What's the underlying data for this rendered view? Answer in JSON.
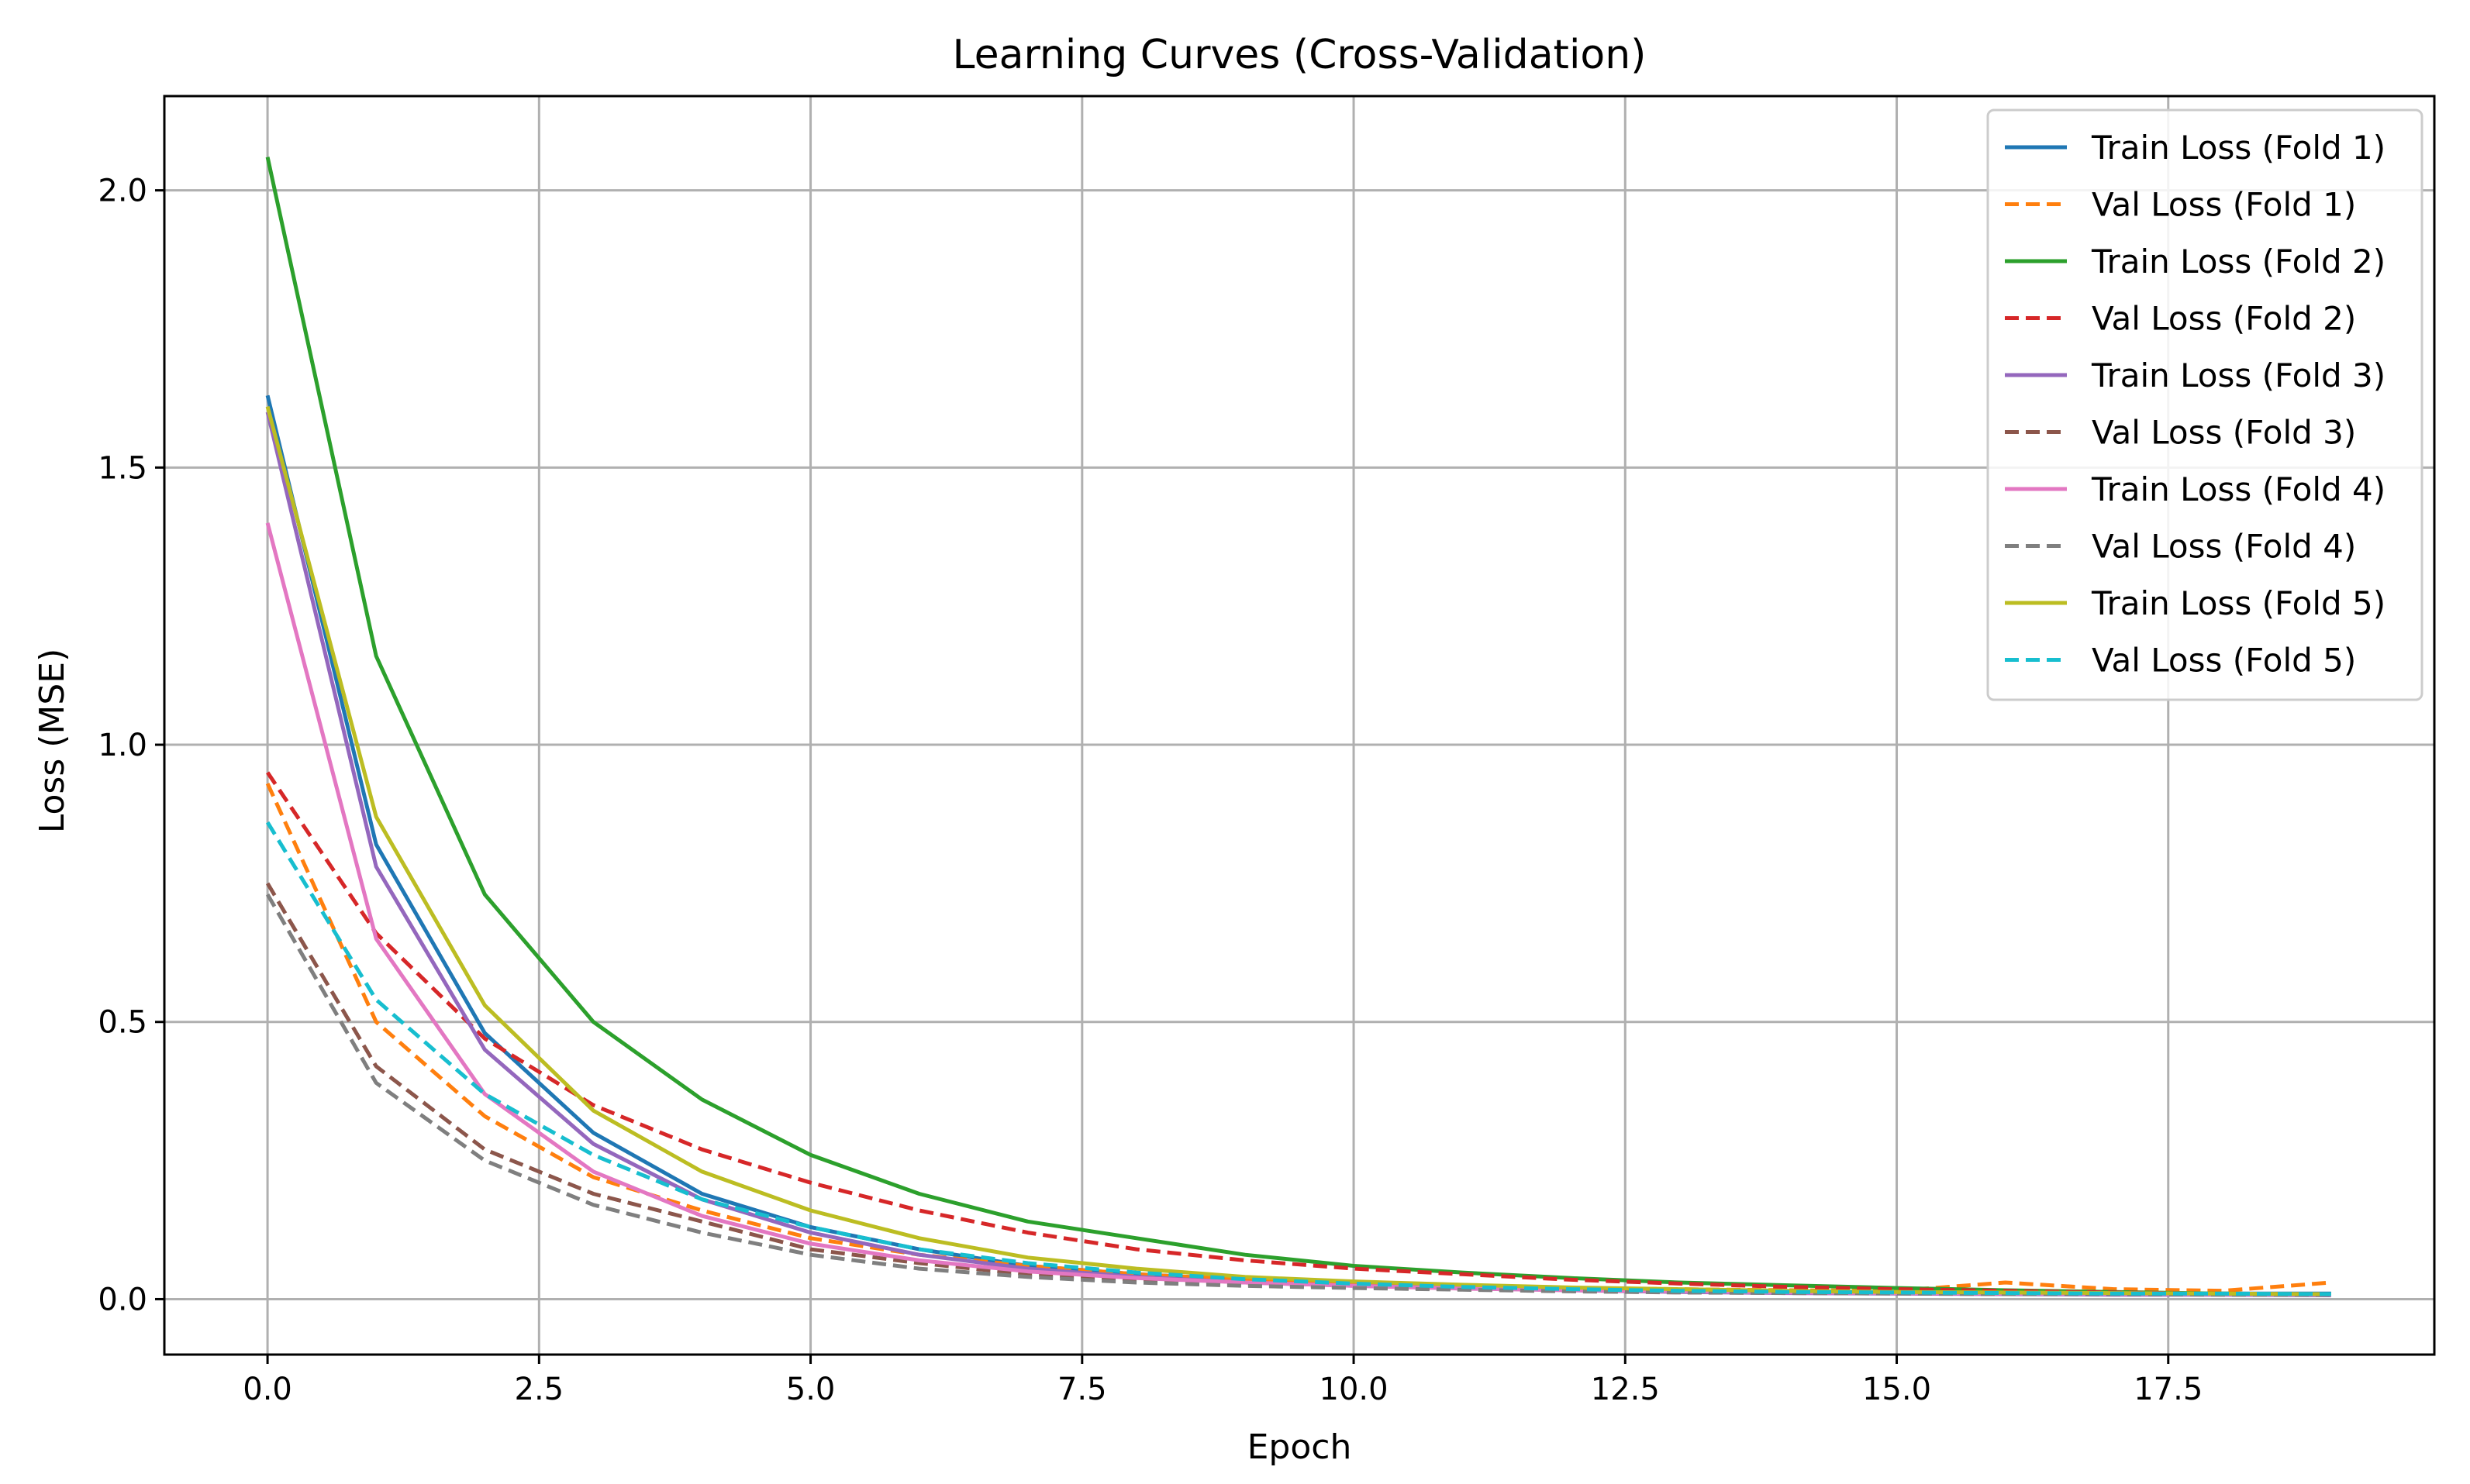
{
  "chart_data": {
    "type": "line",
    "title": "Learning Curves (Cross-Validation)",
    "xlabel": "Epoch",
    "ylabel": "Loss (MSE)",
    "xlim": [
      -0.95,
      19.95
    ],
    "ylim": [
      -0.1,
      2.17
    ],
    "xticks": [
      0.0,
      2.5,
      5.0,
      7.5,
      10.0,
      12.5,
      15.0,
      17.5
    ],
    "xtick_labels": [
      "0.0",
      "2.5",
      "5.0",
      "7.5",
      "10.0",
      "12.5",
      "15.0",
      "17.5"
    ],
    "yticks": [
      0.0,
      0.5,
      1.0,
      1.5,
      2.0
    ],
    "ytick_labels": [
      "0.0",
      "0.5",
      "1.0",
      "1.5",
      "2.0"
    ],
    "grid": true,
    "legend_position": "top-right",
    "x": [
      0,
      1,
      2,
      3,
      4,
      5,
      6,
      7,
      8,
      9,
      10,
      11,
      12,
      13,
      14,
      15,
      16,
      17,
      18,
      19
    ],
    "series": [
      {
        "name": "Train Loss (Fold 1)",
        "color": "#1f77b4",
        "dash": "solid",
        "values": [
          1.63,
          0.82,
          0.48,
          0.3,
          0.19,
          0.13,
          0.09,
          0.06,
          0.045,
          0.035,
          0.028,
          0.022,
          0.018,
          0.015,
          0.013,
          0.012,
          0.011,
          0.01,
          0.01,
          0.01
        ]
      },
      {
        "name": "Val Loss (Fold 1)",
        "color": "#ff7f0e",
        "dash": "dashed",
        "values": [
          0.93,
          0.5,
          0.33,
          0.22,
          0.16,
          0.11,
          0.08,
          0.06,
          0.045,
          0.035,
          0.028,
          0.023,
          0.02,
          0.018,
          0.016,
          0.015,
          0.03,
          0.018,
          0.015,
          0.03
        ]
      },
      {
        "name": "Train Loss (Fold 2)",
        "color": "#2ca02c",
        "dash": "solid",
        "values": [
          2.06,
          1.16,
          0.73,
          0.5,
          0.36,
          0.26,
          0.19,
          0.14,
          0.11,
          0.08,
          0.06,
          0.048,
          0.038,
          0.03,
          0.025,
          0.02,
          0.016,
          0.013,
          0.01,
          0.008
        ]
      },
      {
        "name": "Val Loss (Fold 2)",
        "color": "#d62728",
        "dash": "dashed",
        "values": [
          0.95,
          0.66,
          0.47,
          0.35,
          0.27,
          0.21,
          0.16,
          0.12,
          0.09,
          0.07,
          0.055,
          0.045,
          0.035,
          0.028,
          0.022,
          0.018,
          0.015,
          0.012,
          0.01,
          0.009
        ]
      },
      {
        "name": "Train Loss (Fold 3)",
        "color": "#9467bd",
        "dash": "solid",
        "values": [
          1.6,
          0.78,
          0.45,
          0.28,
          0.18,
          0.12,
          0.08,
          0.055,
          0.04,
          0.03,
          0.024,
          0.02,
          0.016,
          0.013,
          0.011,
          0.01,
          0.009,
          0.008,
          0.008,
          0.007
        ]
      },
      {
        "name": "Val Loss (Fold 3)",
        "color": "#8c564b",
        "dash": "dashed",
        "values": [
          0.75,
          0.42,
          0.27,
          0.19,
          0.14,
          0.09,
          0.065,
          0.045,
          0.035,
          0.027,
          0.022,
          0.018,
          0.015,
          0.013,
          0.012,
          0.011,
          0.01,
          0.009,
          0.009,
          0.008
        ]
      },
      {
        "name": "Train Loss (Fold 4)",
        "color": "#e377c2",
        "dash": "solid",
        "values": [
          1.4,
          0.65,
          0.37,
          0.23,
          0.15,
          0.1,
          0.07,
          0.05,
          0.038,
          0.03,
          0.024,
          0.019,
          0.016,
          0.014,
          0.012,
          0.011,
          0.01,
          0.009,
          0.009,
          0.008
        ]
      },
      {
        "name": "Val Loss (Fold 4)",
        "color": "#7f7f7f",
        "dash": "dashed",
        "values": [
          0.73,
          0.39,
          0.25,
          0.17,
          0.12,
          0.08,
          0.055,
          0.04,
          0.03,
          0.024,
          0.02,
          0.017,
          0.014,
          0.012,
          0.011,
          0.01,
          0.009,
          0.009,
          0.008,
          0.008
        ]
      },
      {
        "name": "Train Loss (Fold 5)",
        "color": "#bcbd22",
        "dash": "solid",
        "values": [
          1.61,
          0.87,
          0.53,
          0.34,
          0.23,
          0.16,
          0.11,
          0.075,
          0.055,
          0.04,
          0.032,
          0.026,
          0.021,
          0.018,
          0.015,
          0.013,
          0.012,
          0.011,
          0.01,
          0.009
        ]
      },
      {
        "name": "Val Loss (Fold 5)",
        "color": "#17becf",
        "dash": "dashed",
        "values": [
          0.86,
          0.54,
          0.37,
          0.26,
          0.18,
          0.13,
          0.09,
          0.065,
          0.048,
          0.036,
          0.028,
          0.022,
          0.018,
          0.015,
          0.013,
          0.012,
          0.011,
          0.01,
          0.01,
          0.009
        ]
      }
    ]
  }
}
